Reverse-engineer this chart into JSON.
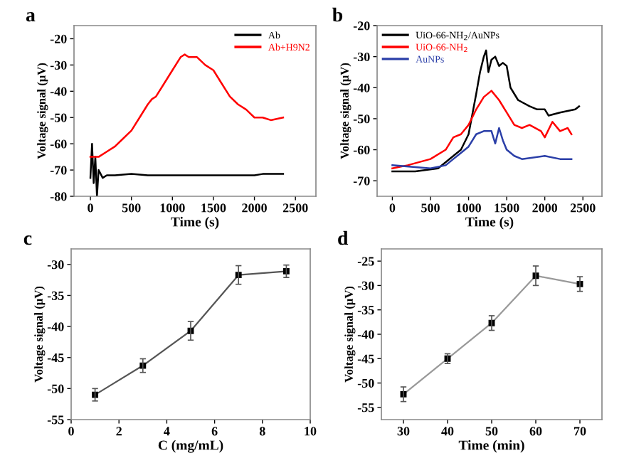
{
  "chart_data": [
    {
      "type": "line",
      "title": "a",
      "xlabel": "Time (s)",
      "ylabel": "Voltage signal (μV)",
      "xlim": [
        -200,
        2750
      ],
      "xticks": [
        0,
        500,
        1000,
        1500,
        2000,
        2500
      ],
      "ylim": [
        -80,
        -15
      ],
      "yticks": [
        -80,
        -70,
        -60,
        -50,
        -40,
        -30,
        -20
      ],
      "legend": "top right",
      "series": [
        {
          "name": "Ab",
          "color": "#000000",
          "x": [
            0,
            20,
            40,
            60,
            80,
            100,
            150,
            200,
            300,
            500,
            700,
            1000,
            1500,
            2000,
            2100,
            2350
          ],
          "values": [
            -73,
            -60,
            -75,
            -65,
            -80,
            -70,
            -73,
            -72,
            -72,
            -71.5,
            -72,
            -72,
            -72,
            -72,
            -71.5,
            -71.5
          ]
        },
        {
          "name": "Ab+H9N2",
          "color": "#ff0000",
          "x": [
            0,
            100,
            200,
            300,
            400,
            500,
            600,
            700,
            750,
            800,
            900,
            1000,
            1100,
            1150,
            1200,
            1300,
            1400,
            1500,
            1600,
            1700,
            1800,
            1900,
            2000,
            2100,
            2200,
            2350
          ],
          "values": [
            -65,
            -65,
            -63,
            -61,
            -58,
            -55,
            -50,
            -45,
            -43,
            -42,
            -37,
            -32,
            -27,
            -26,
            -27,
            -27,
            -30,
            -32,
            -37,
            -42,
            -45,
            -47,
            -50,
            -50,
            -51,
            -50
          ]
        }
      ]
    },
    {
      "type": "line",
      "title": "b",
      "xlabel": "Time (s)",
      "ylabel": "Voltage signal (μV)",
      "xlim": [
        -200,
        2750
      ],
      "xticks": [
        0,
        500,
        1000,
        1500,
        2000,
        2500
      ],
      "ylim": [
        -75,
        -20
      ],
      "yticks": [
        -70,
        -60,
        -50,
        -40,
        -30,
        -20
      ],
      "legend": "top left",
      "series": [
        {
          "name": "UiO-66-NH$_{2}$/AuNPs",
          "color": "#000000",
          "x": [
            0,
            300,
            600,
            800,
            900,
            1000,
            1100,
            1150,
            1200,
            1230,
            1260,
            1300,
            1350,
            1400,
            1450,
            1500,
            1550,
            1650,
            1800,
            1900,
            2000,
            2050,
            2200,
            2400,
            2450
          ],
          "values": [
            -67,
            -67,
            -66,
            -62,
            -60,
            -55,
            -42,
            -35,
            -30,
            -28,
            -35,
            -31,
            -30,
            -33,
            -32,
            -33,
            -40,
            -44,
            -46,
            -47,
            -47,
            -49,
            -48,
            -47,
            -46
          ]
        },
        {
          "name": "UiO-66-NH$_{2}$",
          "color": "#ff0000",
          "x": [
            0,
            200,
            500,
            700,
            800,
            900,
            1000,
            1100,
            1200,
            1300,
            1400,
            1500,
            1600,
            1700,
            1800,
            1950,
            2000,
            2100,
            2200,
            2300,
            2350
          ],
          "values": [
            -66,
            -65,
            -63,
            -60,
            -56,
            -55,
            -52,
            -47,
            -43,
            -41,
            -44,
            -48,
            -52,
            -53,
            -52,
            -54,
            -56,
            -51,
            -54,
            -53,
            -55
          ]
        },
        {
          "name": "AuNPs",
          "color": "#2b3fa8",
          "x": [
            0,
            500,
            700,
            800,
            900,
            1000,
            1100,
            1200,
            1300,
            1350,
            1400,
            1450,
            1500,
            1600,
            1700,
            2000,
            2200,
            2350
          ],
          "values": [
            -65,
            -66,
            -65,
            -63,
            -61,
            -59,
            -55,
            -54,
            -54,
            -58,
            -53,
            -57,
            -60,
            -62,
            -63,
            -62,
            -63,
            -63
          ]
        }
      ]
    },
    {
      "type": "line",
      "title": "c",
      "xlabel": "C (mg/mL)",
      "ylabel": "Voltage signal (μV)",
      "xlim": [
        0,
        10
      ],
      "xticks": [
        0,
        2,
        4,
        6,
        8,
        10
      ],
      "ylim": [
        -55,
        -27.5
      ],
      "yticks": [
        -55,
        -50,
        -45,
        -40,
        -35,
        -30
      ],
      "marker": "square",
      "series": [
        {
          "color": "#555555",
          "x": [
            1,
            3,
            5,
            7,
            9
          ],
          "values": [
            -51,
            -46.3,
            -40.7,
            -31.7,
            -31.1
          ],
          "errors": [
            1,
            1.1,
            1.5,
            1.5,
            1
          ]
        }
      ]
    },
    {
      "type": "line",
      "title": "d",
      "xlabel": "Time (min)",
      "ylabel": "Voltage signal (μV)",
      "xlim": [
        25,
        75
      ],
      "xticks": [
        30,
        40,
        50,
        60,
        70
      ],
      "ylim": [
        -57.5,
        -22.5
      ],
      "yticks": [
        -55,
        -50,
        -45,
        -40,
        -35,
        -30,
        -25
      ],
      "marker": "square",
      "series": [
        {
          "color": "#999999",
          "x": [
            30,
            40,
            50,
            60,
            70
          ],
          "values": [
            -52.3,
            -45,
            -37.7,
            -28,
            -29.7
          ],
          "errors": [
            1.5,
            1,
            1.5,
            2,
            1.5
          ]
        }
      ]
    }
  ]
}
